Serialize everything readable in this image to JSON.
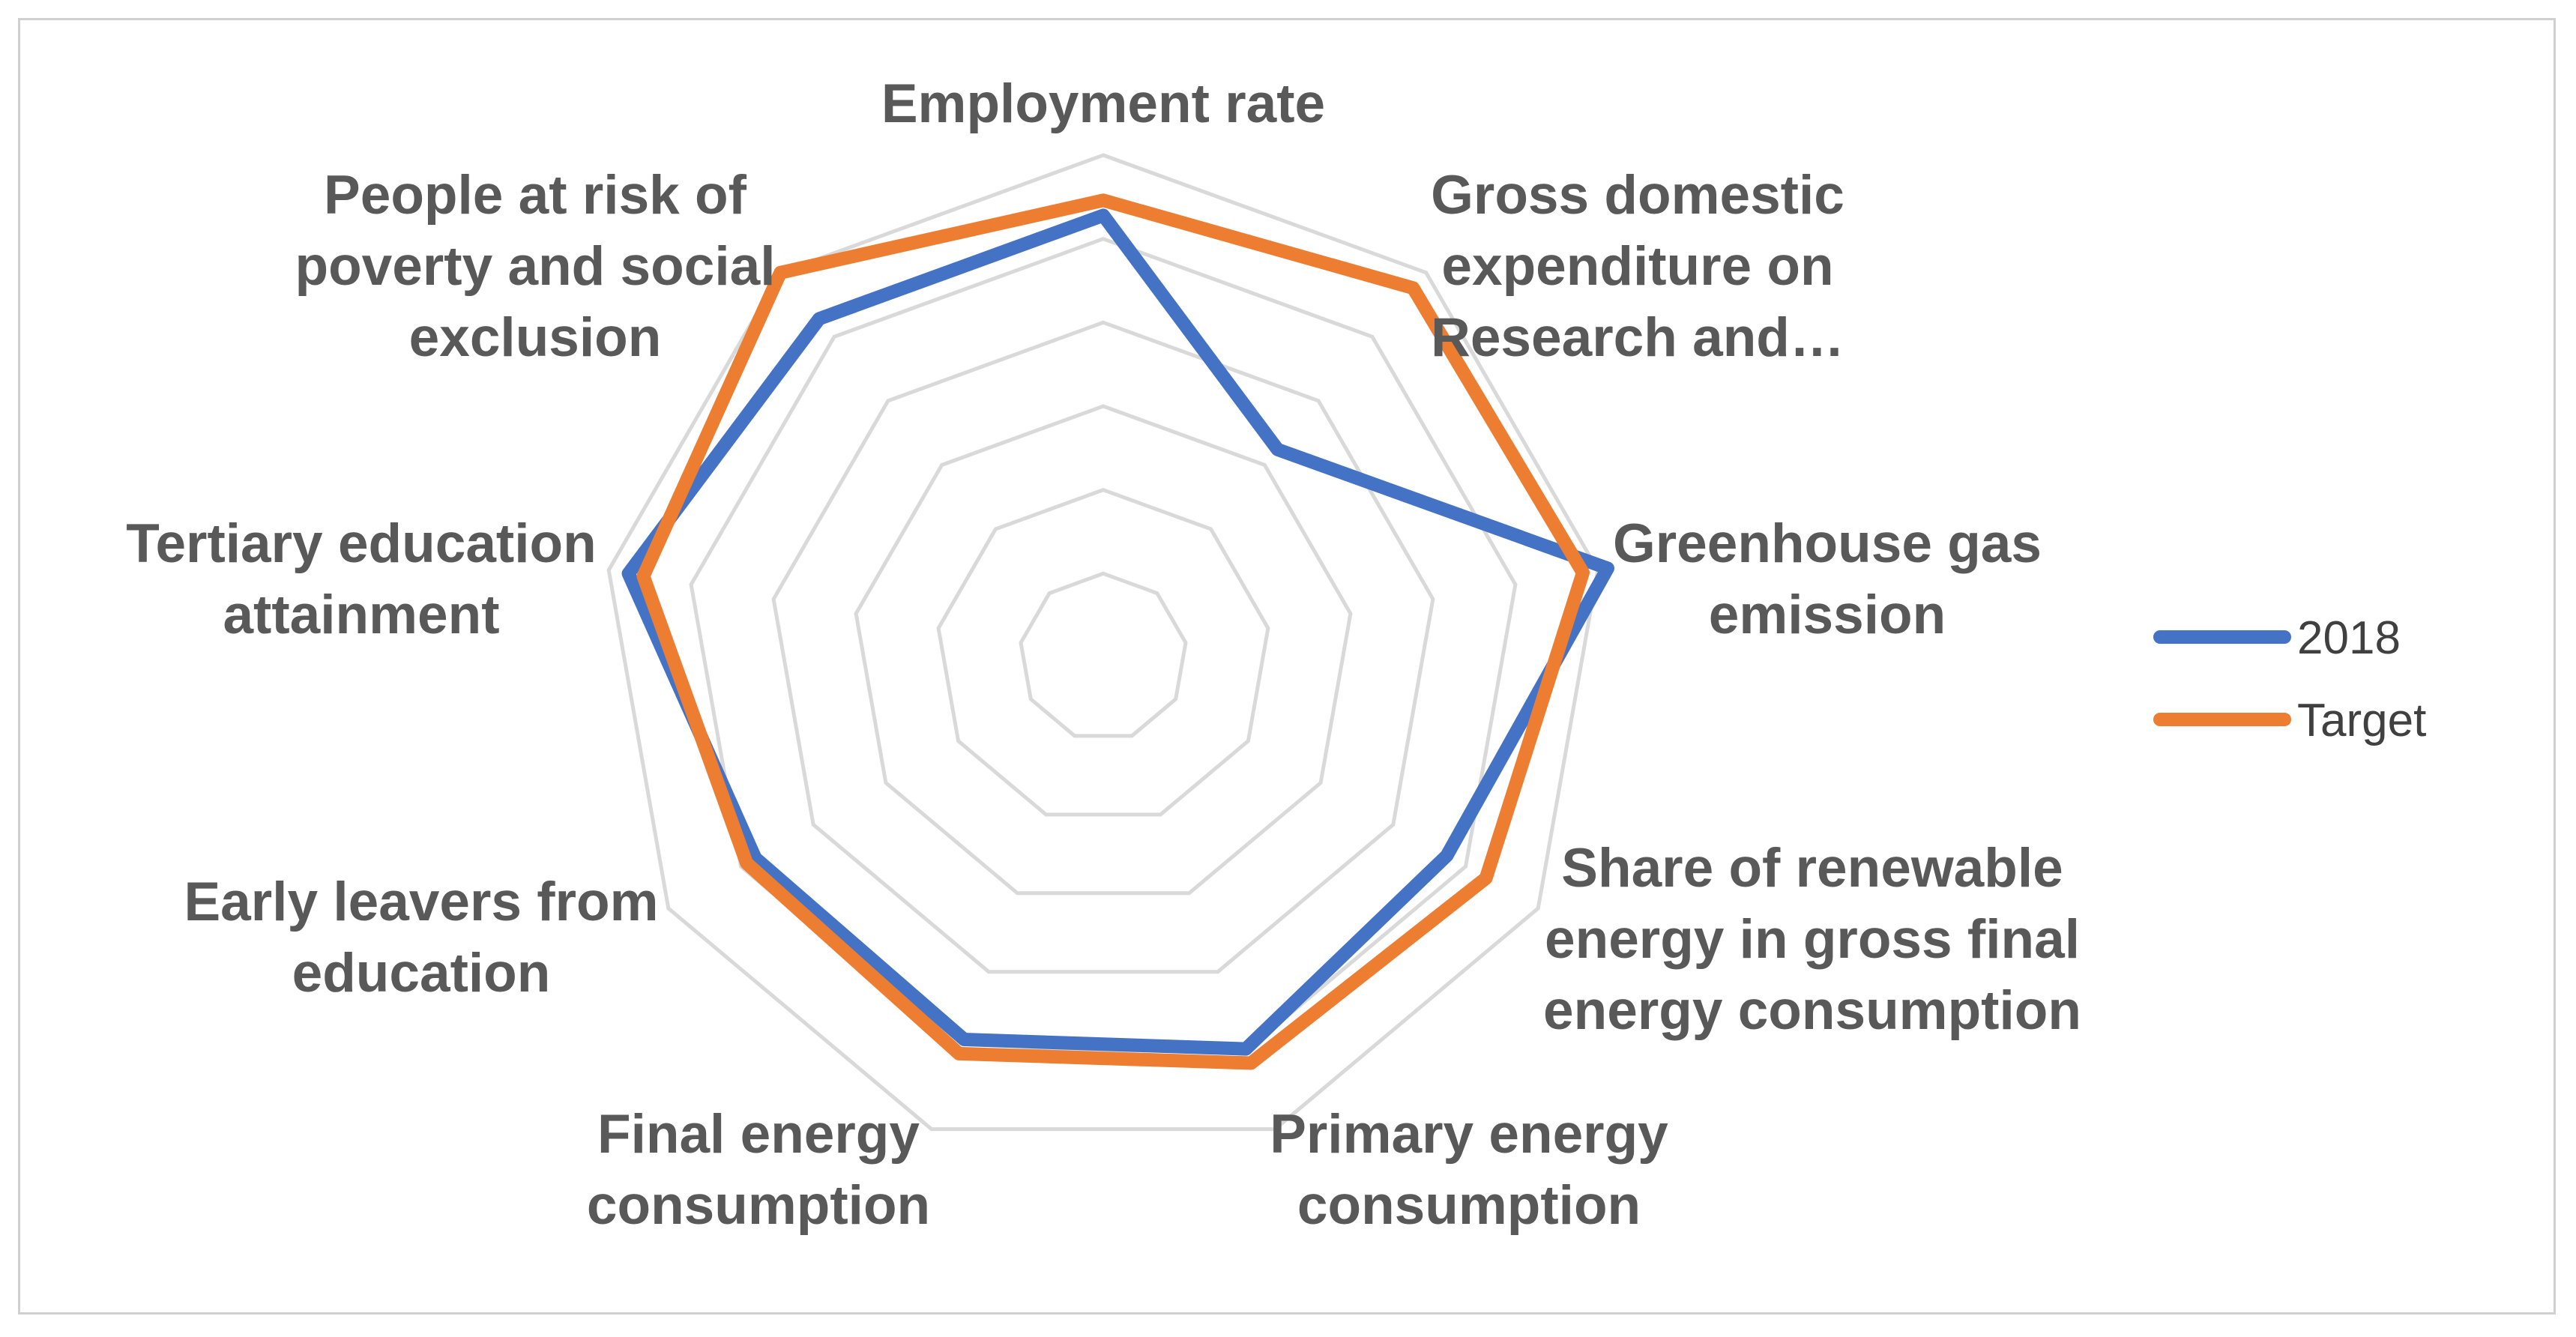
{
  "chart_data": {
    "type": "radar",
    "title": "",
    "axes": [
      "Employment rate",
      "Gross domestic expenditure on Research and…",
      "Greenhouse gas emission",
      "Share of renewable energy in gross final energy consumption",
      "Primary energy consumption",
      "Final energy consumption",
      "Early leavers from education",
      "Tertiary education attainment",
      "People at risk of poverty and social exclusion"
    ],
    "axis_label_lines": [
      [
        "Employment rate"
      ],
      [
        "Gross domestic",
        "expenditure on",
        "Research and…"
      ],
      [
        "Greenhouse gas",
        "emission"
      ],
      [
        "Share of renewable",
        "energy in gross final",
        "energy consumption"
      ],
      [
        "Primary energy",
        "consumption"
      ],
      [
        "Final energy",
        "consumption"
      ],
      [
        "Early leavers from",
        "education"
      ],
      [
        "Tertiary education",
        "attainment"
      ],
      [
        "People at risk of",
        "poverty and social",
        "exclusion"
      ]
    ],
    "range": [
      0,
      1
    ],
    "rings": 6,
    "grid": true,
    "legend_position": "right",
    "series": [
      {
        "name": "2018",
        "color": "#4472C4",
        "values": [
          0.88,
          0.54,
          1.02,
          0.79,
          0.83,
          0.81,
          0.8,
          0.96,
          0.88
        ]
      },
      {
        "name": "Target",
        "color": "#ED7D31",
        "values": [
          0.91,
          0.96,
          0.97,
          0.88,
          0.86,
          0.84,
          0.82,
          0.93,
          1.0
        ]
      }
    ]
  }
}
